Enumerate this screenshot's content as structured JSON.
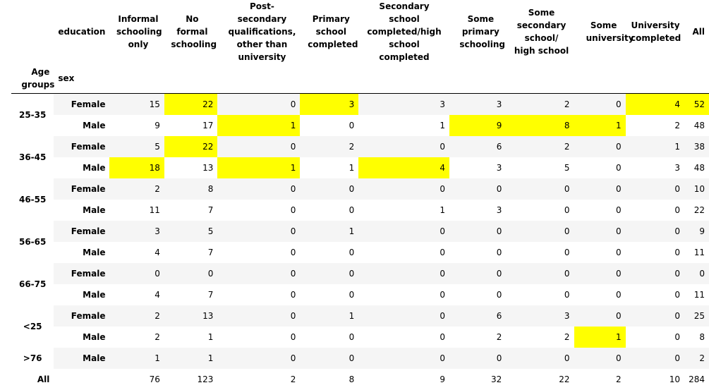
{
  "header": {
    "columns_label": "education",
    "index_label_age": "Age groups",
    "index_label_sex": "sex",
    "columns": [
      "Informal schooling only",
      "No formal schooling",
      "Post-secondary qualifications, other than university",
      "Primary school completed",
      "Secondary school completed/high school completed",
      "Some primary schooling",
      "Some secondary school/ high school",
      "Some university",
      "University completed",
      "All"
    ]
  },
  "highlight_color": "#ffff00",
  "rows": [
    {
      "age": "25-35",
      "sex": "Female",
      "values": [
        "15",
        "22",
        "0",
        "3",
        "3",
        "3",
        "2",
        "0",
        "4",
        "52"
      ],
      "hl": [
        false,
        true,
        false,
        true,
        false,
        false,
        false,
        false,
        true,
        true
      ]
    },
    {
      "age": "",
      "sex": "Male",
      "values": [
        "9",
        "17",
        "1",
        "0",
        "1",
        "9",
        "8",
        "1",
        "2",
        "48"
      ],
      "hl": [
        false,
        false,
        true,
        false,
        false,
        true,
        true,
        true,
        false,
        false
      ]
    },
    {
      "age": "36-45",
      "sex": "Female",
      "values": [
        "5",
        "22",
        "0",
        "2",
        "0",
        "6",
        "2",
        "0",
        "1",
        "38"
      ],
      "hl": [
        false,
        true,
        false,
        false,
        false,
        false,
        false,
        false,
        false,
        false
      ]
    },
    {
      "age": "",
      "sex": "Male",
      "values": [
        "18",
        "13",
        "1",
        "1",
        "4",
        "3",
        "5",
        "0",
        "3",
        "48"
      ],
      "hl": [
        true,
        false,
        true,
        false,
        true,
        false,
        false,
        false,
        false,
        false
      ]
    },
    {
      "age": "46-55",
      "sex": "Female",
      "values": [
        "2",
        "8",
        "0",
        "0",
        "0",
        "0",
        "0",
        "0",
        "0",
        "10"
      ],
      "hl": [
        false,
        false,
        false,
        false,
        false,
        false,
        false,
        false,
        false,
        false
      ]
    },
    {
      "age": "",
      "sex": "Male",
      "values": [
        "11",
        "7",
        "0",
        "0",
        "1",
        "3",
        "0",
        "0",
        "0",
        "22"
      ],
      "hl": [
        false,
        false,
        false,
        false,
        false,
        false,
        false,
        false,
        false,
        false
      ]
    },
    {
      "age": "56-65",
      "sex": "Female",
      "values": [
        "3",
        "5",
        "0",
        "1",
        "0",
        "0",
        "0",
        "0",
        "0",
        "9"
      ],
      "hl": [
        false,
        false,
        false,
        false,
        false,
        false,
        false,
        false,
        false,
        false
      ]
    },
    {
      "age": "",
      "sex": "Male",
      "values": [
        "4",
        "7",
        "0",
        "0",
        "0",
        "0",
        "0",
        "0",
        "0",
        "11"
      ],
      "hl": [
        false,
        false,
        false,
        false,
        false,
        false,
        false,
        false,
        false,
        false
      ]
    },
    {
      "age": "66-75",
      "sex": "Female",
      "values": [
        "0",
        "0",
        "0",
        "0",
        "0",
        "0",
        "0",
        "0",
        "0",
        "0"
      ],
      "hl": [
        false,
        false,
        false,
        false,
        false,
        false,
        false,
        false,
        false,
        false
      ]
    },
    {
      "age": "",
      "sex": "Male",
      "values": [
        "4",
        "7",
        "0",
        "0",
        "0",
        "0",
        "0",
        "0",
        "0",
        "11"
      ],
      "hl": [
        false,
        false,
        false,
        false,
        false,
        false,
        false,
        false,
        false,
        false
      ]
    },
    {
      "age": "<25",
      "sex": "Female",
      "values": [
        "2",
        "13",
        "0",
        "1",
        "0",
        "6",
        "3",
        "0",
        "0",
        "25"
      ],
      "hl": [
        false,
        false,
        false,
        false,
        false,
        false,
        false,
        false,
        false,
        false
      ]
    },
    {
      "age": "",
      "sex": "Male",
      "values": [
        "2",
        "1",
        "0",
        "0",
        "0",
        "2",
        "2",
        "1",
        "0",
        "8"
      ],
      "hl": [
        false,
        false,
        false,
        false,
        false,
        false,
        false,
        true,
        false,
        false
      ]
    },
    {
      "age": ">76",
      "sex": "Male",
      "values": [
        "1",
        "1",
        "0",
        "0",
        "0",
        "0",
        "0",
        "0",
        "0",
        "2"
      ],
      "hl": [
        false,
        false,
        false,
        false,
        false,
        false,
        false,
        false,
        false,
        false
      ]
    }
  ],
  "total": {
    "label": "All",
    "values": [
      "76",
      "123",
      "2",
      "8",
      "9",
      "32",
      "22",
      "2",
      "10",
      "284"
    ]
  }
}
